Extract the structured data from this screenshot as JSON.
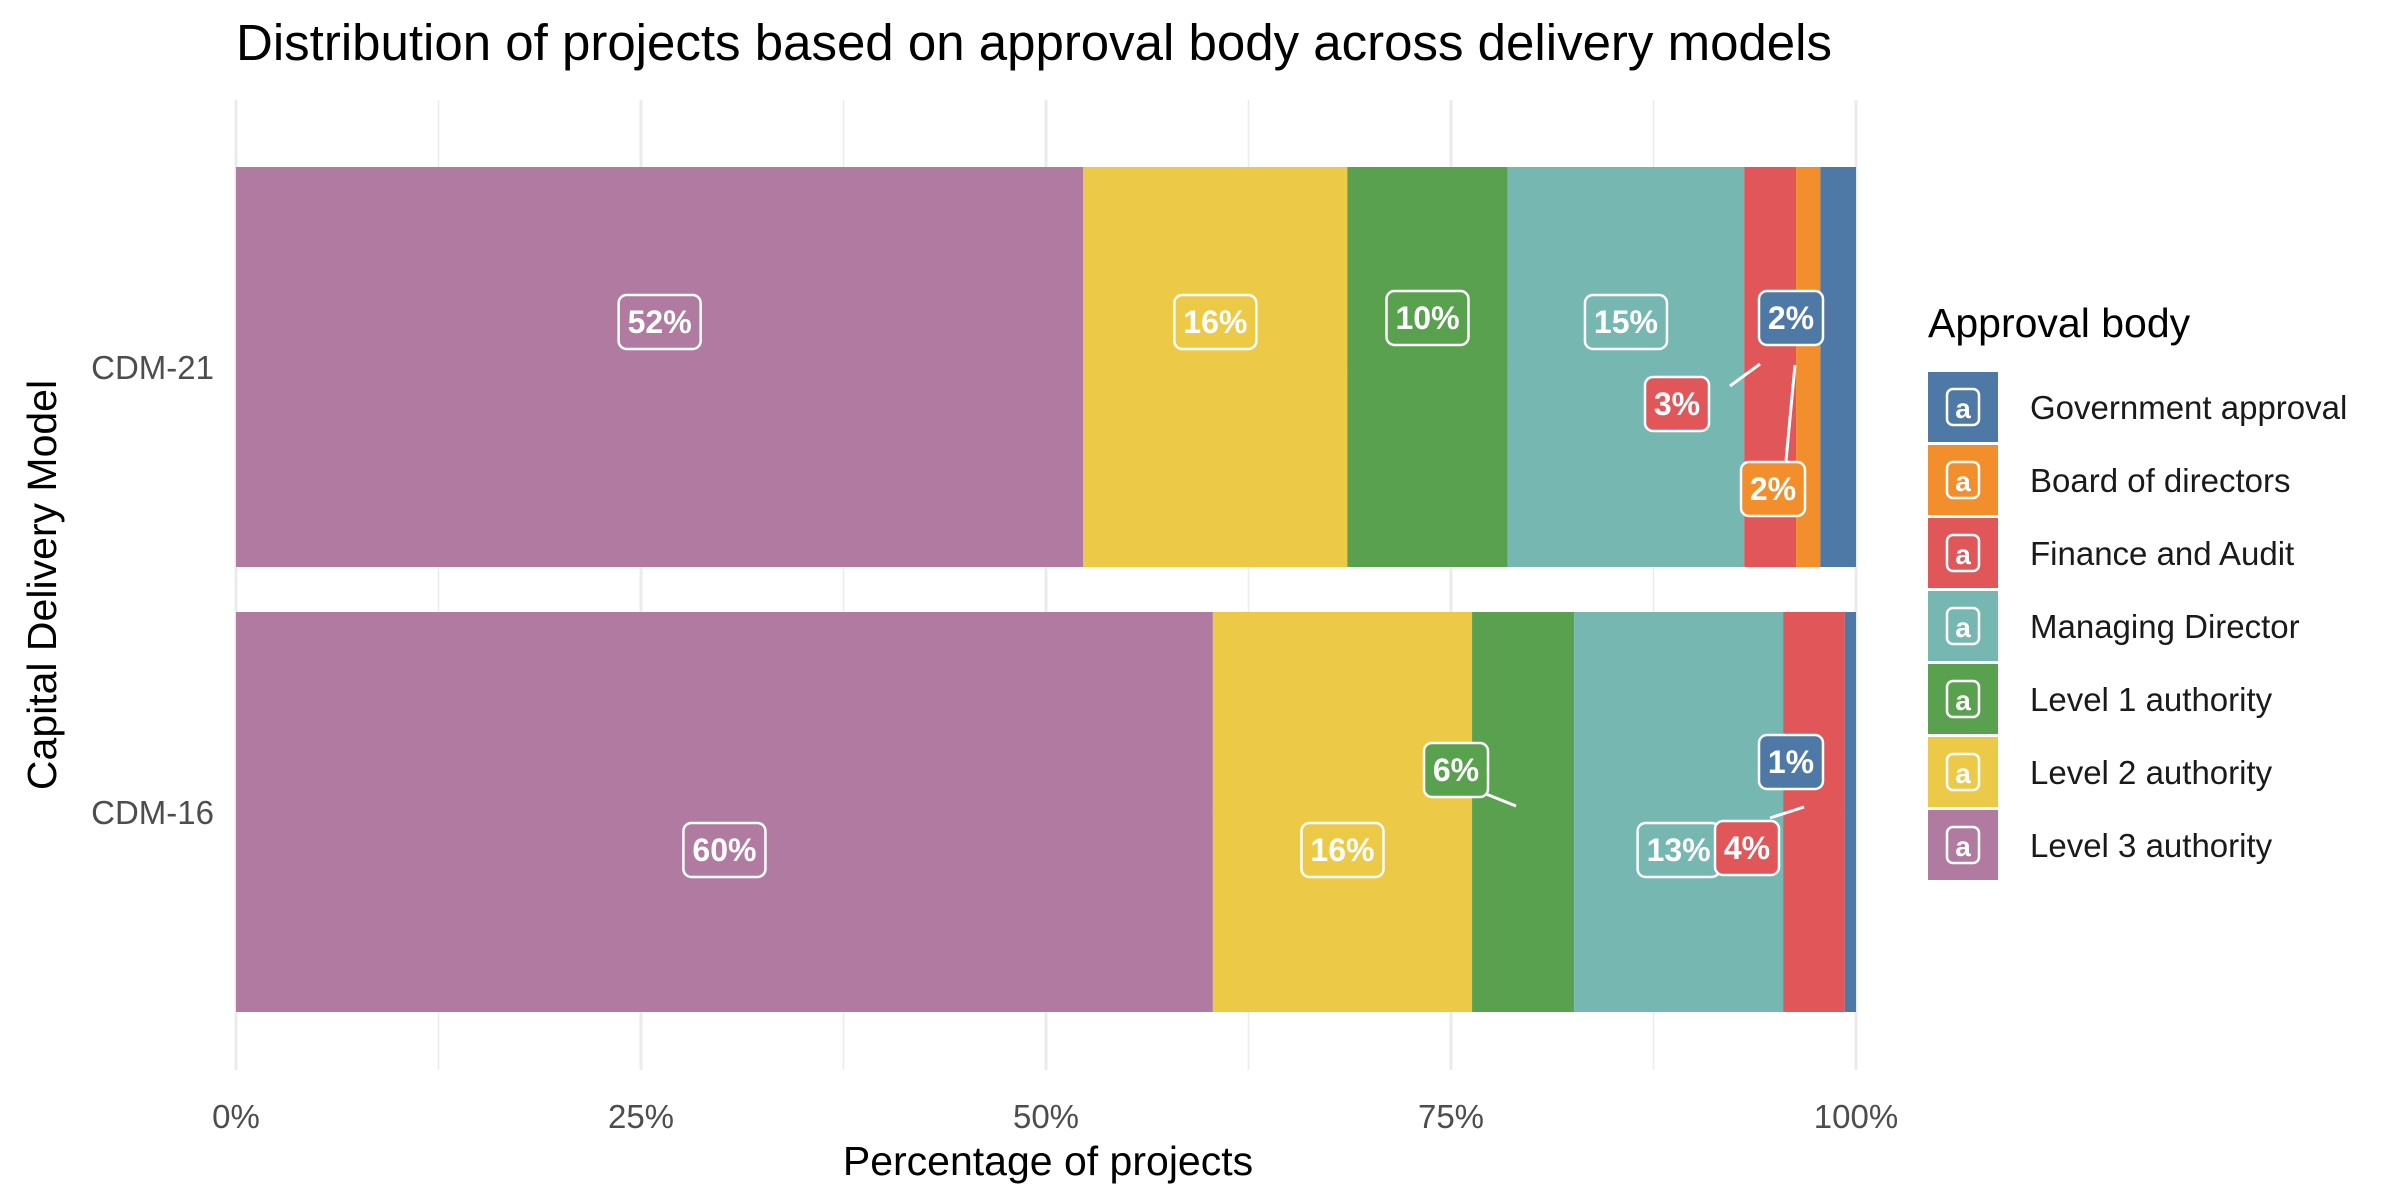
{
  "chart_data": {
    "type": "bar",
    "orientation": "horizontal",
    "stacked": true,
    "title": "Distribution of projects based on approval body across delivery models",
    "xlabel": "Percentage of projects",
    "ylabel": "Capital Delivery Model",
    "xlim": [
      0,
      100
    ],
    "x_ticks": [
      "0%",
      "25%",
      "50%",
      "75%",
      "100%"
    ],
    "categories": [
      "CDM-21",
      "CDM-16"
    ],
    "grid": true,
    "legend": {
      "title": "Approval body",
      "placement": "right",
      "key_glyph": "a"
    },
    "series": [
      {
        "name": "Level 3 authority",
        "color": "#B07AA1",
        "values": [
          52.3,
          60.3
        ],
        "labels": [
          "52%",
          "60%"
        ]
      },
      {
        "name": "Level 2 authority",
        "color": "#EDC948",
        "values": [
          16.3,
          16.0
        ],
        "labels": [
          "16%",
          "16%"
        ]
      },
      {
        "name": "Level 1 authority",
        "color": "#59A14F",
        "values": [
          9.9,
          6.3
        ],
        "labels": [
          "10%",
          "6%"
        ]
      },
      {
        "name": "Managing Director",
        "color": "#76B7B2",
        "values": [
          14.6,
          12.9
        ],
        "labels": [
          "15%",
          "13%"
        ]
      },
      {
        "name": "Finance and Audit",
        "color": "#E15759",
        "values": [
          3.2,
          3.8
        ],
        "labels": [
          "3%",
          "4%"
        ]
      },
      {
        "name": "Board of directors",
        "color": "#F28E2B",
        "values": [
          1.5,
          0.0
        ],
        "labels": [
          "2%",
          ""
        ]
      },
      {
        "name": "Government approval",
        "color": "#4E79A7",
        "values": [
          2.2,
          0.7
        ],
        "labels": [
          "2%",
          "1%"
        ]
      }
    ],
    "legend_order": [
      "Government approval",
      "Board of directors",
      "Finance and Audit",
      "Managing Director",
      "Level 1 authority",
      "Level 2 authority",
      "Level 3 authority"
    ]
  }
}
